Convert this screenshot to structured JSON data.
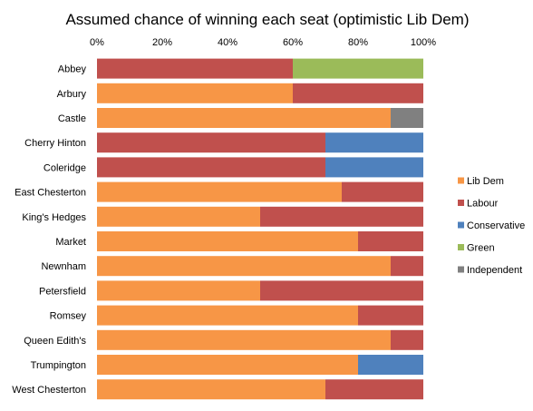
{
  "chart_data": {
    "type": "bar",
    "orientation": "horizontal",
    "stacked": true,
    "title": "Assumed chance of winning each seat (optimistic Lib Dem)",
    "xlabel": "",
    "ylabel": "",
    "x_axis_position": "top",
    "xlim": [
      0,
      100
    ],
    "x_ticks": [
      "0%",
      "20%",
      "40%",
      "60%",
      "80%",
      "100%"
    ],
    "grid": false,
    "legend_position": "right",
    "categories": [
      "Abbey",
      "Arbury",
      "Castle",
      "Cherry Hinton",
      "Coleridge",
      "East Chesterton",
      "King's Hedges",
      "Market",
      "Newnham",
      "Petersfield",
      "Romsey",
      "Queen Edith's",
      "Trumpington",
      "West Chesterton"
    ],
    "series": [
      {
        "name": "Lib Dem",
        "color": "#F79646",
        "values": [
          0,
          60,
          90,
          0,
          0,
          75,
          50,
          80,
          90,
          50,
          80,
          90,
          80,
          70
        ]
      },
      {
        "name": "Labour",
        "color": "#C0504D",
        "values": [
          60,
          40,
          0,
          70,
          70,
          25,
          50,
          20,
          10,
          50,
          20,
          10,
          0,
          30
        ]
      },
      {
        "name": "Conservative",
        "color": "#4F81BD",
        "values": [
          0,
          0,
          0,
          30,
          30,
          0,
          0,
          0,
          0,
          0,
          0,
          0,
          20,
          0
        ]
      },
      {
        "name": "Green",
        "color": "#9BBB59",
        "values": [
          40,
          0,
          0,
          0,
          0,
          0,
          0,
          0,
          0,
          0,
          0,
          0,
          0,
          0
        ]
      },
      {
        "name": "Independent",
        "color": "#808080",
        "values": [
          0,
          0,
          10,
          0,
          0,
          0,
          0,
          0,
          0,
          0,
          0,
          0,
          0,
          0
        ]
      }
    ]
  }
}
